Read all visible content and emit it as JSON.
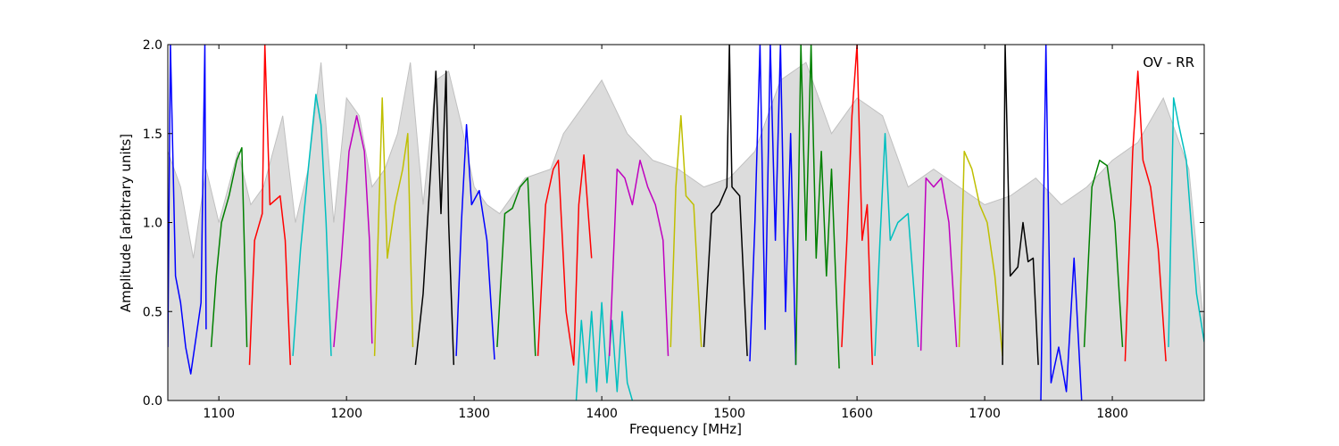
{
  "chart_data": {
    "type": "line",
    "title": "",
    "annotation": "OV - RR",
    "xlabel": "Frequency [MHz]",
    "ylabel": "Amplitude [arbitrary units]",
    "xlim": [
      1060,
      1872
    ],
    "ylim": [
      0,
      2.0
    ],
    "xticks": [
      1100,
      1200,
      1300,
      1400,
      1500,
      1600,
      1700,
      1800
    ],
    "yticks": [
      0.0,
      0.5,
      1.0,
      1.5,
      2.0
    ],
    "xtick_labels": [
      "1100",
      "1200",
      "1300",
      "1400",
      "1500",
      "1600",
      "1700",
      "1800"
    ],
    "ytick_labels": [
      "0.0",
      "0.5",
      "1.0",
      "1.5",
      "2.0"
    ],
    "grid": false,
    "colors": {
      "background_envelope": "#c0c0c0",
      "blue": "#0000ff",
      "green": "#008000",
      "red": "#ff0000",
      "cyan": "#00bfbf",
      "magenta": "#bf00bf",
      "yellow": "#bfbf00",
      "black": "#000000"
    },
    "background": {
      "x": [
        1060,
        1070,
        1080,
        1090,
        1100,
        1115,
        1125,
        1135,
        1150,
        1160,
        1170,
        1180,
        1190,
        1200,
        1210,
        1220,
        1230,
        1240,
        1250,
        1260,
        1270,
        1280,
        1290,
        1300,
        1310,
        1320,
        1340,
        1360,
        1370,
        1380,
        1400,
        1420,
        1440,
        1460,
        1480,
        1500,
        1520,
        1540,
        1560,
        1580,
        1600,
        1620,
        1640,
        1660,
        1680,
        1700,
        1720,
        1740,
        1760,
        1780,
        1800,
        1820,
        1840,
        1860,
        1872
      ],
      "y": [
        1.4,
        1.2,
        0.8,
        1.3,
        1.0,
        1.4,
        1.1,
        1.2,
        1.6,
        1.0,
        1.3,
        1.9,
        1.0,
        1.7,
        1.6,
        1.2,
        1.3,
        1.5,
        1.9,
        1.1,
        1.8,
        1.85,
        1.55,
        1.2,
        1.1,
        1.05,
        1.25,
        1.3,
        1.5,
        1.6,
        1.8,
        1.5,
        1.35,
        1.3,
        1.2,
        1.25,
        1.4,
        1.8,
        1.9,
        1.5,
        1.7,
        1.6,
        1.2,
        1.3,
        1.2,
        1.1,
        1.15,
        1.25,
        1.1,
        1.2,
        1.35,
        1.45,
        1.7,
        1.3,
        0.4
      ]
    },
    "series": [
      {
        "color": "blue",
        "x": [
          1060,
          1062,
          1066,
          1070,
          1074,
          1078,
          1082,
          1086,
          1089,
          1090
        ],
        "y": [
          0.3,
          2.0,
          0.7,
          0.55,
          0.3,
          0.15,
          0.35,
          0.55,
          2.0,
          0.4
        ]
      },
      {
        "color": "green",
        "x": [
          1094,
          1098,
          1102,
          1108,
          1114,
          1118,
          1122
        ],
        "y": [
          0.3,
          0.7,
          1.0,
          1.15,
          1.35,
          1.42,
          0.3
        ]
      },
      {
        "color": "red",
        "x": [
          1124,
          1128,
          1134,
          1136,
          1140,
          1148,
          1152,
          1156
        ],
        "y": [
          0.2,
          0.9,
          1.05,
          2.0,
          1.1,
          1.15,
          0.9,
          0.2
        ]
      },
      {
        "color": "cyan",
        "x": [
          1158,
          1164,
          1170,
          1176,
          1180,
          1184,
          1188
        ],
        "y": [
          0.25,
          0.85,
          1.3,
          1.72,
          1.55,
          1.0,
          0.25
        ]
      },
      {
        "color": "magenta",
        "x": [
          1190,
          1196,
          1202,
          1208,
          1214,
          1218,
          1220
        ],
        "y": [
          0.3,
          0.8,
          1.4,
          1.6,
          1.4,
          0.9,
          0.32
        ]
      },
      {
        "color": "yellow",
        "x": [
          1222,
          1228,
          1232,
          1238,
          1244,
          1248,
          1252
        ],
        "y": [
          0.25,
          1.7,
          0.8,
          1.1,
          1.3,
          1.5,
          0.3
        ]
      },
      {
        "color": "black",
        "x": [
          1254,
          1260,
          1266,
          1270,
          1274,
          1278,
          1280,
          1284
        ],
        "y": [
          0.2,
          0.6,
          1.3,
          1.85,
          1.05,
          1.85,
          1.0,
          0.2
        ]
      },
      {
        "color": "blue",
        "x": [
          1286,
          1290,
          1294,
          1298,
          1304,
          1310,
          1316
        ],
        "y": [
          0.25,
          1.0,
          1.55,
          1.1,
          1.18,
          0.9,
          0.23
        ]
      },
      {
        "color": "green",
        "x": [
          1318,
          1324,
          1330,
          1336,
          1342,
          1348
        ],
        "y": [
          0.3,
          1.05,
          1.08,
          1.2,
          1.25,
          0.25
        ]
      },
      {
        "color": "red",
        "x": [
          1350,
          1356,
          1362,
          1366,
          1372,
          1378,
          1382,
          1386,
          1392
        ],
        "y": [
          0.25,
          1.1,
          1.3,
          1.35,
          0.5,
          0.2,
          1.1,
          1.38,
          0.8
        ]
      },
      {
        "color": "cyan",
        "x": [
          1380,
          1384,
          1388,
          1392,
          1396,
          1400,
          1404,
          1408,
          1412,
          1416,
          1420,
          1424
        ],
        "y": [
          0.0,
          0.45,
          0.1,
          0.5,
          0.05,
          0.55,
          0.1,
          0.45,
          0.05,
          0.5,
          0.1,
          0.0
        ]
      },
      {
        "color": "magenta",
        "x": [
          1406,
          1412,
          1418,
          1424,
          1430,
          1436,
          1442,
          1448,
          1452
        ],
        "y": [
          0.25,
          1.3,
          1.25,
          1.1,
          1.35,
          1.2,
          1.1,
          0.9,
          0.25
        ]
      },
      {
        "color": "yellow",
        "x": [
          1454,
          1458,
          1462,
          1466,
          1472,
          1478
        ],
        "y": [
          0.3,
          1.2,
          1.6,
          1.15,
          1.1,
          0.3
        ]
      },
      {
        "color": "black",
        "x": [
          1480,
          1486,
          1492,
          1498,
          1500,
          1502,
          1508,
          1514
        ],
        "y": [
          0.3,
          1.05,
          1.1,
          1.2,
          2.0,
          1.2,
          1.15,
          0.25
        ]
      },
      {
        "color": "blue",
        "x": [
          1516,
          1520,
          1524,
          1528,
          1532,
          1536,
          1540,
          1544,
          1548,
          1552
        ],
        "y": [
          0.22,
          1.0,
          2.0,
          0.4,
          2.0,
          0.9,
          2.0,
          0.5,
          1.5,
          0.2
        ]
      },
      {
        "color": "green",
        "x": [
          1552,
          1556,
          1560,
          1564,
          1568,
          1572,
          1576,
          1580,
          1586
        ],
        "y": [
          0.2,
          2.0,
          0.9,
          2.0,
          0.8,
          1.4,
          0.7,
          1.3,
          0.18
        ]
      },
      {
        "color": "red",
        "x": [
          1588,
          1592,
          1596,
          1600,
          1604,
          1608,
          1612
        ],
        "y": [
          0.3,
          0.9,
          1.6,
          2.0,
          0.9,
          1.1,
          0.2
        ]
      },
      {
        "color": "cyan",
        "x": [
          1614,
          1618,
          1622,
          1626,
          1632,
          1640,
          1648
        ],
        "y": [
          0.25,
          0.9,
          1.5,
          0.9,
          1.0,
          1.05,
          0.3
        ]
      },
      {
        "color": "magenta",
        "x": [
          1650,
          1654,
          1660,
          1666,
          1672,
          1678
        ],
        "y": [
          0.28,
          1.25,
          1.2,
          1.25,
          1.0,
          0.3
        ]
      },
      {
        "color": "yellow",
        "x": [
          1680,
          1684,
          1690,
          1696,
          1702,
          1708,
          1714
        ],
        "y": [
          0.3,
          1.4,
          1.3,
          1.1,
          1.0,
          0.7,
          0.25
        ]
      },
      {
        "color": "black",
        "x": [
          1714,
          1716,
          1720,
          1726,
          1730,
          1734,
          1738,
          1742
        ],
        "y": [
          0.2,
          2.0,
          0.7,
          0.75,
          1.0,
          0.78,
          0.8,
          0.2
        ]
      },
      {
        "color": "blue",
        "x": [
          1744,
          1748,
          1752,
          1758,
          1764,
          1770,
          1776
        ],
        "y": [
          0.0,
          2.0,
          0.1,
          0.3,
          0.05,
          0.8,
          0.0
        ]
      },
      {
        "color": "green",
        "x": [
          1778,
          1784,
          1790,
          1796,
          1802,
          1808
        ],
        "y": [
          0.3,
          1.2,
          1.35,
          1.32,
          1.0,
          0.3
        ]
      },
      {
        "color": "red",
        "x": [
          1810,
          1816,
          1820,
          1824,
          1830,
          1836,
          1842
        ],
        "y": [
          0.22,
          1.4,
          1.85,
          1.35,
          1.2,
          0.85,
          0.22
        ]
      },
      {
        "color": "cyan",
        "x": [
          1844,
          1848,
          1852,
          1858,
          1866,
          1872
        ],
        "y": [
          0.3,
          1.7,
          1.55,
          1.35,
          0.6,
          0.33
        ]
      }
    ]
  }
}
